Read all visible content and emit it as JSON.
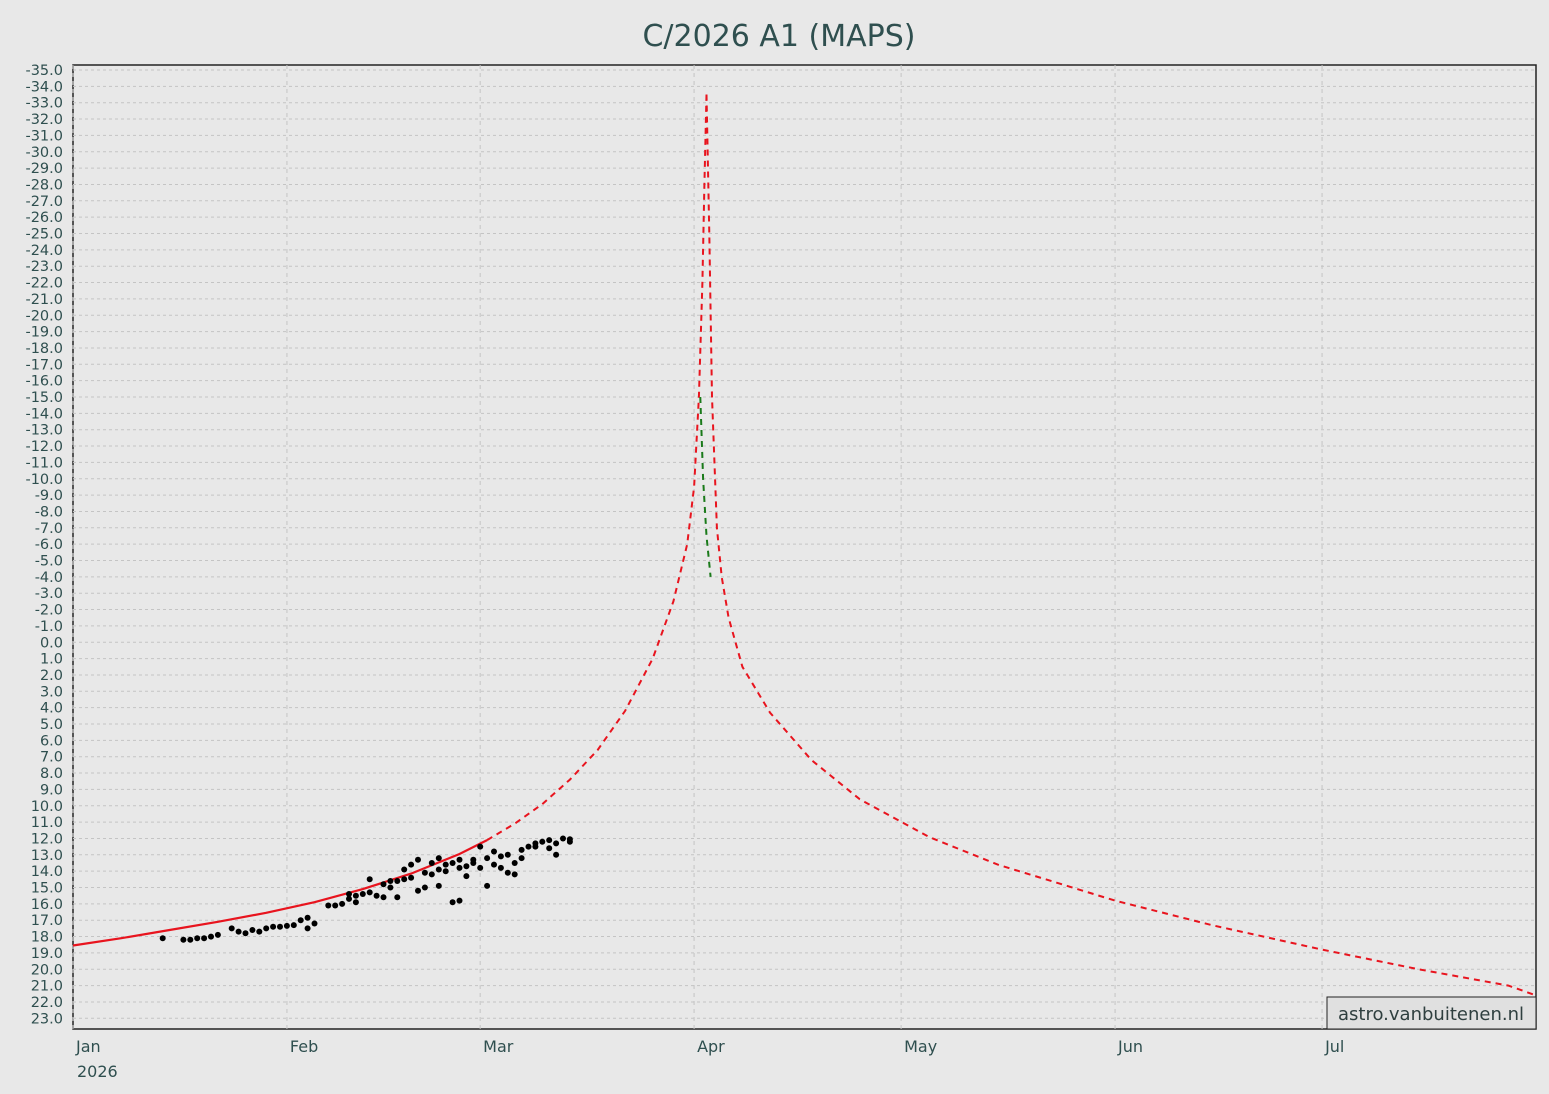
{
  "chart_data": {
    "type": "line",
    "title": "C/2026 A1 (MAPS)",
    "xlabel": "",
    "ylabel": "",
    "x_axis": {
      "type": "date",
      "range": [
        "2026-01-01",
        "2026-08-01"
      ],
      "ticks": [
        {
          "date": "2026-01-01",
          "label": "Jan"
        },
        {
          "date": "2026-02-01",
          "label": "Feb"
        },
        {
          "date": "2026-03-01",
          "label": "Mar"
        },
        {
          "date": "2026-04-01",
          "label": "Apr"
        },
        {
          "date": "2026-05-01",
          "label": "May"
        },
        {
          "date": "2026-06-01",
          "label": "Jun"
        },
        {
          "date": "2026-07-01",
          "label": "Jul"
        }
      ],
      "year_label": "2026"
    },
    "y_axis": {
      "inverted": true,
      "range": [
        -35.0,
        23.3
      ],
      "tick_step": 1.0
    },
    "grid": true,
    "watermark": "astro.vanbuitenen.nl",
    "series": [
      {
        "role": "fit",
        "style": "solid",
        "color": "#e8141e",
        "points": [
          [
            "2026-01-01",
            18.55
          ],
          [
            "2026-01-08",
            18.1
          ],
          [
            "2026-01-15",
            17.6
          ],
          [
            "2026-01-22",
            17.1
          ],
          [
            "2026-01-29",
            16.55
          ],
          [
            "2026-02-05",
            15.9
          ],
          [
            "2026-02-12",
            15.1
          ],
          [
            "2026-02-19",
            14.15
          ],
          [
            "2026-02-26",
            12.95
          ],
          [
            "2026-03-02",
            12.1
          ]
        ]
      },
      {
        "role": "prediction",
        "style": "dashed",
        "color": "#e8141e",
        "points": [
          [
            "2026-03-02",
            12.1
          ],
          [
            "2026-03-06",
            11.1
          ],
          [
            "2026-03-10",
            9.9
          ],
          [
            "2026-03-14",
            8.4
          ],
          [
            "2026-03-18",
            6.6
          ],
          [
            "2026-03-22",
            4.2
          ],
          [
            "2026-03-26",
            1.0
          ],
          [
            "2026-03-29",
            -2.5
          ],
          [
            "2026-03-31",
            -6.0
          ],
          [
            "2026-04-01",
            -9.5
          ],
          [
            "2026-04-01.7",
            -15.0
          ],
          [
            "2026-04-02.2",
            -22.0
          ],
          [
            "2026-04-02.5",
            -28.0
          ],
          [
            "2026-04-02.8",
            -33.5
          ]
        ]
      },
      {
        "role": "prediction-post",
        "style": "dashed",
        "color": "#e8141e",
        "points": [
          [
            "2026-04-02.8",
            -33.5
          ],
          [
            "2026-04-03.2",
            -25.0
          ],
          [
            "2026-04-03.6",
            -15.0
          ],
          [
            "2026-04-04.3",
            -7.0
          ],
          [
            "2026-04-05",
            -4.0
          ],
          [
            "2026-04-06",
            -1.5
          ],
          [
            "2026-04-08",
            1.5
          ],
          [
            "2026-04-12",
            4.3
          ],
          [
            "2026-04-18",
            7.2
          ],
          [
            "2026-04-25",
            9.6
          ],
          [
            "2026-05-05",
            11.9
          ],
          [
            "2026-05-15",
            13.6
          ],
          [
            "2026-06-01",
            15.8
          ],
          [
            "2026-06-15",
            17.3
          ],
          [
            "2026-07-01",
            18.8
          ],
          [
            "2026-07-15",
            20.0
          ],
          [
            "2026-07-28",
            21.0
          ],
          [
            "2026-08-01",
            21.6
          ]
        ]
      },
      {
        "role": "prediction-highlight",
        "style": "dashed",
        "color": "#1a7a1a",
        "points": [
          [
            "2026-04-01.9",
            -15.0
          ],
          [
            "2026-04-02.3",
            -10.0
          ],
          [
            "2026-04-02.8",
            -6.5
          ],
          [
            "2026-04-03.4",
            -4.0
          ]
        ]
      }
    ],
    "observations": [
      [
        "2026-01-14",
        18.1
      ],
      [
        "2026-01-17",
        18.2
      ],
      [
        "2026-01-18",
        18.2
      ],
      [
        "2026-01-19",
        18.1
      ],
      [
        "2026-01-20",
        18.1
      ],
      [
        "2026-01-21",
        18.0
      ],
      [
        "2026-01-22",
        17.9
      ],
      [
        "2026-01-24",
        17.5
      ],
      [
        "2026-01-25",
        17.7
      ],
      [
        "2026-01-26",
        17.8
      ],
      [
        "2026-01-27",
        17.6
      ],
      [
        "2026-01-28",
        17.7
      ],
      [
        "2026-01-29",
        17.5
      ],
      [
        "2026-01-30",
        17.4
      ],
      [
        "2026-01-31",
        17.4
      ],
      [
        "2026-02-01",
        17.35
      ],
      [
        "2026-02-02",
        17.3
      ],
      [
        "2026-02-03",
        17.0
      ],
      [
        "2026-02-04",
        16.85
      ],
      [
        "2026-02-04",
        17.5
      ],
      [
        "2026-02-05",
        17.2
      ],
      [
        "2026-02-07",
        16.1
      ],
      [
        "2026-02-08",
        16.1
      ],
      [
        "2026-02-09",
        16.0
      ],
      [
        "2026-02-10",
        15.7
      ],
      [
        "2026-02-10",
        15.4
      ],
      [
        "2026-02-11",
        15.9
      ],
      [
        "2026-02-11",
        15.5
      ],
      [
        "2026-02-12",
        15.4
      ],
      [
        "2026-02-13",
        15.3
      ],
      [
        "2026-02-13",
        14.5
      ],
      [
        "2026-02-14",
        15.5
      ],
      [
        "2026-02-15",
        14.8
      ],
      [
        "2026-02-15",
        15.6
      ],
      [
        "2026-02-16",
        14.6
      ],
      [
        "2026-02-16",
        15.0
      ],
      [
        "2026-02-17",
        14.6
      ],
      [
        "2026-02-17",
        15.6
      ],
      [
        "2026-02-18",
        14.5
      ],
      [
        "2026-02-18",
        13.9
      ],
      [
        "2026-02-19",
        14.4
      ],
      [
        "2026-02-19",
        13.6
      ],
      [
        "2026-02-20",
        15.2
      ],
      [
        "2026-02-20",
        13.3
      ],
      [
        "2026-02-21",
        14.1
      ],
      [
        "2026-02-21",
        15.0
      ],
      [
        "2026-02-22",
        13.5
      ],
      [
        "2026-02-22",
        14.2
      ],
      [
        "2026-02-23",
        13.2
      ],
      [
        "2026-02-23",
        14.9
      ],
      [
        "2026-02-23",
        13.9
      ],
      [
        "2026-02-24",
        13.6
      ],
      [
        "2026-02-24",
        14.0
      ],
      [
        "2026-02-25",
        13.5
      ],
      [
        "2026-02-25",
        15.9
      ],
      [
        "2026-02-26",
        13.3
      ],
      [
        "2026-02-26",
        13.8
      ],
      [
        "2026-02-26",
        15.8
      ],
      [
        "2026-02-27",
        13.7
      ],
      [
        "2026-02-27",
        14.3
      ],
      [
        "2026-02-28",
        13.3
      ],
      [
        "2026-02-28",
        13.5
      ],
      [
        "2026-03-01",
        12.5
      ],
      [
        "2026-03-01",
        13.8
      ],
      [
        "2026-03-02",
        13.2
      ],
      [
        "2026-03-02",
        14.9
      ],
      [
        "2026-03-03",
        12.8
      ],
      [
        "2026-03-03",
        13.6
      ],
      [
        "2026-03-04",
        13.1
      ],
      [
        "2026-03-04",
        13.8
      ],
      [
        "2026-03-05",
        13.0
      ],
      [
        "2026-03-05",
        14.1
      ],
      [
        "2026-03-06",
        14.2
      ],
      [
        "2026-03-06",
        13.5
      ],
      [
        "2026-03-07",
        13.2
      ],
      [
        "2026-03-07",
        12.7
      ],
      [
        "2026-03-08",
        12.5
      ],
      [
        "2026-03-09",
        12.3
      ],
      [
        "2026-03-09",
        12.5
      ],
      [
        "2026-03-10",
        12.2
      ],
      [
        "2026-03-11",
        12.6
      ],
      [
        "2026-03-11",
        12.1
      ],
      [
        "2026-03-12",
        13.0
      ],
      [
        "2026-03-12",
        12.3
      ],
      [
        "2026-03-13",
        12.0
      ],
      [
        "2026-03-14",
        12.2
      ],
      [
        "2026-03-14",
        12.05
      ]
    ],
    "observation_color": "#000000"
  }
}
